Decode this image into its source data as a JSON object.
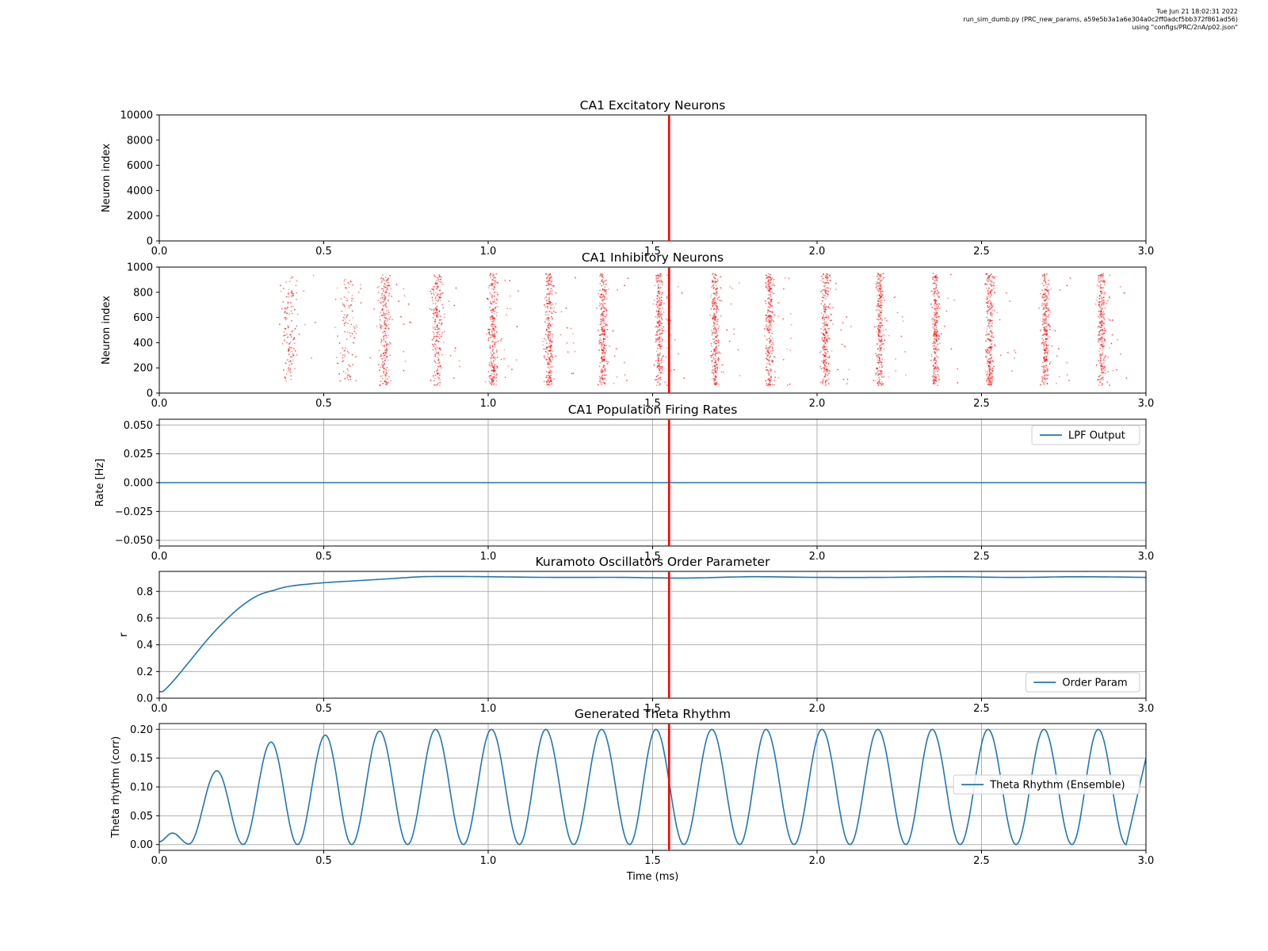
{
  "header_meta": {
    "line1": "Tue Jun 21 18:02:31 2022",
    "line2": "run_sim_dumb.py (PRC_new_params, a59e5b3a1a6e304a0c2ff0adcf5bb372f861ad56)",
    "line3": "using \"configs/PRC/2nA/p02.json\""
  },
  "colors": {
    "series": "#1f77b4",
    "marker": "#ff0000",
    "spikes": "#ff0000",
    "grid": "#b0b0b0"
  },
  "marker_line": {
    "x": 1.55
  },
  "chart_data": [
    {
      "id": "exc",
      "type": "scatter",
      "title": "CA1 Excitatory Neurons",
      "xlabel": "",
      "ylabel": "Neuron index",
      "xlim": [
        0,
        3.0
      ],
      "ylim": [
        0,
        10000
      ],
      "xticks": [
        "0.0",
        "0.5",
        "1.0",
        "1.5",
        "2.0",
        "2.5",
        "3.0"
      ],
      "yticks": [
        "0",
        "2000",
        "4000",
        "6000",
        "8000",
        "10000"
      ],
      "grid": false,
      "series": []
    },
    {
      "id": "inh",
      "type": "scatter",
      "title": "CA1 Inhibitory Neurons",
      "xlabel": "",
      "ylabel": "Neuron index",
      "xlim": [
        0,
        3.0
      ],
      "ylim": [
        0,
        1000
      ],
      "xticks": [
        "0.0",
        "0.5",
        "1.0",
        "1.5",
        "2.0",
        "2.5",
        "3.0"
      ],
      "yticks": [
        "0",
        "200",
        "400",
        "600",
        "800",
        "1000"
      ],
      "grid": false,
      "spike_bursts": [
        {
          "t": 0.395,
          "spread": 0.012,
          "y": [
            90,
            940
          ],
          "density": 0.5
        },
        {
          "t": 0.57,
          "spread": 0.014,
          "y": [
            90,
            920
          ],
          "density": 0.4
        },
        {
          "t": 0.685,
          "spread": 0.008,
          "y": [
            60,
            950
          ],
          "density": 0.9
        },
        {
          "t": 0.845,
          "spread": 0.009,
          "y": [
            60,
            950
          ],
          "density": 0.85
        },
        {
          "t": 1.015,
          "spread": 0.007,
          "y": [
            60,
            950
          ],
          "density": 1.0
        },
        {
          "t": 1.185,
          "spread": 0.006,
          "y": [
            60,
            950
          ],
          "density": 1.0
        },
        {
          "t": 1.35,
          "spread": 0.006,
          "y": [
            60,
            950
          ],
          "density": 1.0
        },
        {
          "t": 1.52,
          "spread": 0.006,
          "y": [
            60,
            950
          ],
          "density": 1.0
        },
        {
          "t": 1.69,
          "spread": 0.006,
          "y": [
            60,
            950
          ],
          "density": 1.0
        },
        {
          "t": 1.855,
          "spread": 0.006,
          "y": [
            60,
            950
          ],
          "density": 1.0
        },
        {
          "t": 2.025,
          "spread": 0.006,
          "y": [
            60,
            950
          ],
          "density": 1.0
        },
        {
          "t": 2.19,
          "spread": 0.006,
          "y": [
            60,
            950
          ],
          "density": 1.0
        },
        {
          "t": 2.36,
          "spread": 0.006,
          "y": [
            60,
            950
          ],
          "density": 1.0
        },
        {
          "t": 2.525,
          "spread": 0.006,
          "y": [
            60,
            950
          ],
          "density": 1.0
        },
        {
          "t": 2.695,
          "spread": 0.006,
          "y": [
            60,
            950
          ],
          "density": 1.0
        },
        {
          "t": 2.865,
          "spread": 0.006,
          "y": [
            60,
            950
          ],
          "density": 1.0
        }
      ]
    },
    {
      "id": "rates",
      "type": "line",
      "title": "CA1 Population Firing Rates",
      "xlabel": "",
      "ylabel": "Rate [Hz]",
      "xlim": [
        0,
        3.0
      ],
      "ylim": [
        -0.055,
        0.055
      ],
      "xticks": [
        "0.0",
        "0.5",
        "1.0",
        "1.5",
        "2.0",
        "2.5",
        "3.0"
      ],
      "yticks": [
        "−0.050",
        "−0.025",
        "0.000",
        "0.025",
        "0.050"
      ],
      "ytick_values": [
        -0.05,
        -0.025,
        0,
        0.025,
        0.05
      ],
      "grid": true,
      "legend": "top-right",
      "series": [
        {
          "name": "LPF Output",
          "x": [
            0,
            3.0
          ],
          "y": [
            0,
            0
          ]
        }
      ]
    },
    {
      "id": "kuramoto",
      "type": "line",
      "title": "Kuramoto Oscillators Order Parameter",
      "xlabel": "",
      "ylabel": "r",
      "xlim": [
        0,
        3.0
      ],
      "ylim": [
        0,
        0.95
      ],
      "xticks": [
        "0.0",
        "0.5",
        "1.0",
        "1.5",
        "2.0",
        "2.5",
        "3.0"
      ],
      "yticks": [
        "0.0",
        "0.2",
        "0.4",
        "0.6",
        "0.8"
      ],
      "ytick_values": [
        0,
        0.2,
        0.4,
        0.6,
        0.8
      ],
      "grid": true,
      "legend": "bottom-right",
      "series": [
        {
          "name": "Order Param",
          "x": [
            0,
            0.01,
            0.02,
            0.05,
            0.1,
            0.15,
            0.2,
            0.25,
            0.3,
            0.35,
            0.4,
            0.5,
            0.6,
            0.7,
            0.8,
            0.9,
            1.0,
            1.2,
            1.4,
            1.6,
            1.8,
            2.0,
            2.2,
            2.4,
            2.6,
            2.8,
            3.0
          ],
          "y": [
            0.05,
            0.05,
            0.07,
            0.15,
            0.3,
            0.45,
            0.58,
            0.69,
            0.77,
            0.81,
            0.84,
            0.865,
            0.88,
            0.895,
            0.91,
            0.912,
            0.91,
            0.905,
            0.905,
            0.9,
            0.91,
            0.905,
            0.905,
            0.91,
            0.905,
            0.91,
            0.905
          ]
        }
      ]
    },
    {
      "id": "theta",
      "type": "line",
      "title": "Generated Theta Rhythm",
      "xlabel": "Time (ms)",
      "ylabel": "Theta rhythm (corr)",
      "xlim": [
        0,
        3.0
      ],
      "ylim": [
        -0.01,
        0.21
      ],
      "xticks": [
        "0.0",
        "0.5",
        "1.0",
        "1.5",
        "2.0",
        "2.5",
        "3.0"
      ],
      "yticks": [
        "0.00",
        "0.05",
        "0.10",
        "0.15",
        "0.20"
      ],
      "ytick_values": [
        0,
        0.05,
        0.1,
        0.15,
        0.2
      ],
      "grid": true,
      "legend": "center-right",
      "series": [
        {
          "name": "Theta Rhythm (Ensemble)",
          "peaks_x": [
            0.04,
            0.175,
            0.34,
            0.505,
            0.67,
            0.84,
            1.01,
            1.175,
            1.345,
            1.51,
            1.68,
            1.845,
            2.015,
            2.185,
            2.35,
            2.52,
            2.69,
            2.855
          ],
          "peaks_y": [
            0.02,
            0.128,
            0.178,
            0.19,
            0.197,
            0.2,
            0.2,
            0.2,
            0.2,
            0.2,
            0.2,
            0.2,
            0.2,
            0.2,
            0.2,
            0.2,
            0.2,
            0.2
          ],
          "troughs_x": [
            0,
            0.09,
            0.255,
            0.42,
            0.585,
            0.755,
            0.925,
            1.095,
            1.26,
            1.43,
            1.595,
            1.765,
            1.93,
            2.1,
            2.27,
            2.435,
            2.605,
            2.775,
            2.94
          ],
          "troughs_y": [
            0.005,
            0.001,
            0,
            0,
            0,
            0,
            0,
            0,
            0,
            0,
            0,
            0,
            0,
            0,
            0,
            0,
            0,
            0,
            0
          ],
          "end": {
            "x": 3.0,
            "y": 0.15
          }
        }
      ]
    }
  ]
}
